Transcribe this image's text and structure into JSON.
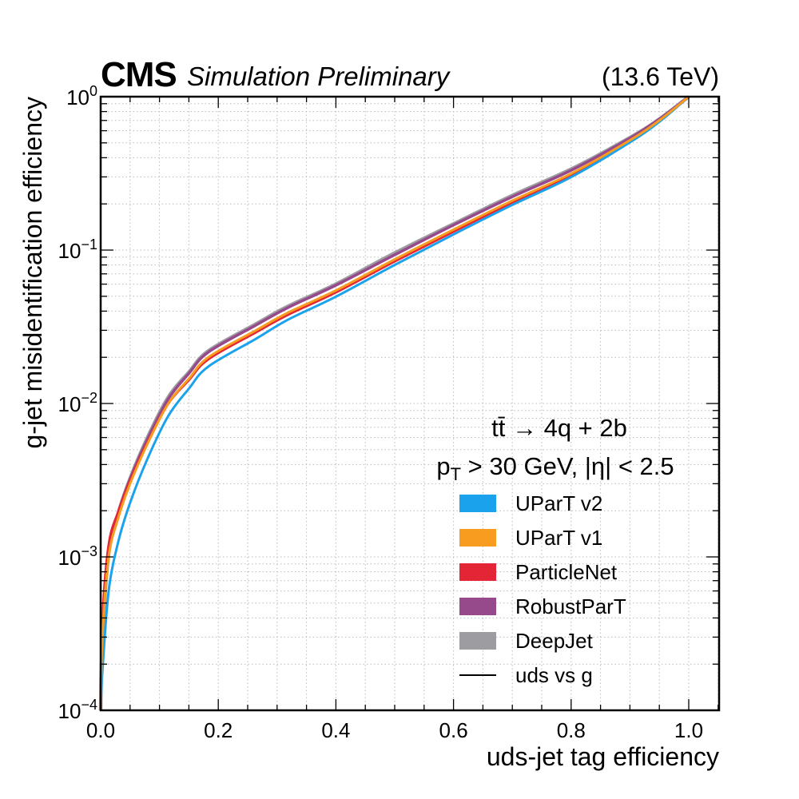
{
  "header": {
    "experiment": "CMS",
    "status": "Simulation Preliminary",
    "energy": "(13.6 TeV)"
  },
  "annotations": {
    "process": "tt̄ → 4q + 2b",
    "cuts_pt": "p",
    "cuts_pt_sub": "T",
    "cuts_rest": " > 30 GeV, |η| < 2.5"
  },
  "chart_data": {
    "type": "line",
    "title": "",
    "xlabel": "uds-jet tag efficiency",
    "ylabel": "g-jet misidentification efficiency",
    "xlim": [
      0,
      1.05
    ],
    "ylim": [
      0.0001,
      1
    ],
    "yscale": "log",
    "grid": true,
    "legend_placement": "lower-right",
    "xticks": [
      0.0,
      0.2,
      0.4,
      0.6,
      0.8,
      1.0
    ],
    "xtick_labels": [
      "0.0",
      "0.2",
      "0.4",
      "0.6",
      "0.8",
      "1.0"
    ],
    "yticks": [
      0.0001,
      0.001,
      0.01,
      0.1,
      1
    ],
    "ytick_labels": [
      {
        "base": "10",
        "exp": "−4"
      },
      {
        "base": "10",
        "exp": "−3"
      },
      {
        "base": "10",
        "exp": "−2"
      },
      {
        "base": "10",
        "exp": "−1"
      },
      {
        "base": "10",
        "exp": "0"
      }
    ],
    "x": [
      0,
      0.003,
      0.0136,
      0.03,
      0.05,
      0.08,
      0.115,
      0.15,
      0.183,
      0.264,
      0.318,
      0.4,
      0.5,
      0.6,
      0.7,
      0.8,
      0.9,
      0.95,
      1.0
    ],
    "series": [
      {
        "name": "UParT v2",
        "color": "#1aa3ec",
        "values": [
          0.0001,
          0.00018,
          0.0006,
          0.00126,
          0.00225,
          0.0044,
          0.0083,
          0.0125,
          0.0174,
          0.0264,
          0.0351,
          0.0497,
          0.08,
          0.1265,
          0.197,
          0.299,
          0.504,
          0.686,
          1.0
        ]
      },
      {
        "name": "UParT v1",
        "color": "#f89c20",
        "values": [
          0.0001,
          0.0003,
          0.001,
          0.0018,
          0.003,
          0.0055,
          0.01,
          0.0145,
          0.02,
          0.03,
          0.039,
          0.0546,
          0.087,
          0.136,
          0.21,
          0.315,
          0.52,
          0.7,
          1.0
        ]
      },
      {
        "name": "ParticleNet",
        "color": "#e42536",
        "values": [
          0.0001,
          0.00039,
          0.0012,
          0.00198,
          0.00315,
          0.00561,
          0.01,
          0.0142,
          0.0194,
          0.0291,
          0.0378,
          0.053,
          0.0844,
          0.132,
          0.204,
          0.306,
          0.51,
          0.693,
          1.0
        ]
      },
      {
        "name": "RobustParT",
        "color": "#964a8b",
        "values": [
          0.0001,
          0.00033,
          0.0011,
          0.00194,
          0.00321,
          0.00589,
          0.0107,
          0.0157,
          0.0216,
          0.0324,
          0.0421,
          0.059,
          0.0931,
          0.1455,
          0.2226,
          0.331,
          0.536,
          0.714,
          1.0
        ]
      },
      {
        "name": "DeepJet",
        "color": "#9c9ca1",
        "values": [
          0.0001,
          0.0003,
          0.00105,
          0.00193,
          0.00324,
          0.00605,
          0.011,
          0.016,
          0.022,
          0.033,
          0.0429,
          0.06,
          0.0957,
          0.148,
          0.227,
          0.337,
          0.541,
          0.714,
          1.0
        ]
      }
    ],
    "legend_style_entry": {
      "name": "uds vs g",
      "color": "#000000"
    }
  }
}
